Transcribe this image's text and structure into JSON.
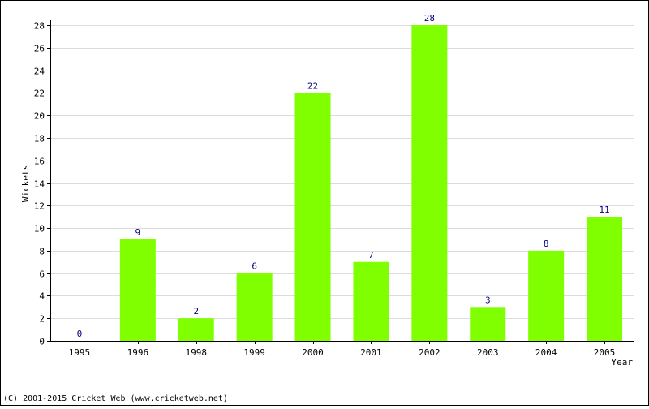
{
  "chart_data": {
    "type": "bar",
    "categories": [
      "1995",
      "1996",
      "1998",
      "1999",
      "2000",
      "2001",
      "2002",
      "2003",
      "2004",
      "2005"
    ],
    "values": [
      0,
      9,
      2,
      6,
      22,
      7,
      28,
      3,
      8,
      11
    ],
    "title": "",
    "xlabel": "Year",
    "ylabel": "Wickets",
    "ylim": [
      0,
      28
    ],
    "yticks": [
      0,
      2,
      4,
      6,
      8,
      10,
      12,
      14,
      16,
      18,
      20,
      22,
      24,
      26,
      28
    ],
    "grid": true,
    "legend": "none",
    "bar_color": "#80ff00",
    "value_label_color": "#000080"
  },
  "footer": {
    "copyright": "(C) 2001-2015 Cricket Web (www.cricketweb.net)"
  }
}
